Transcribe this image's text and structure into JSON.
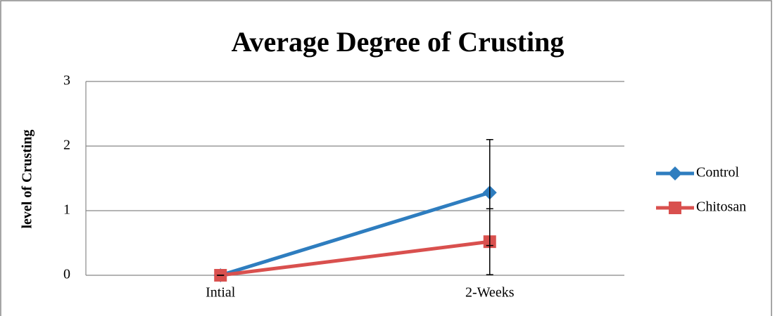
{
  "chart_data": {
    "type": "line",
    "title": "Average Degree of Crusting",
    "ylabel": "level of Crusting",
    "categories": [
      "Intial",
      "2-Weeks"
    ],
    "series": [
      {
        "name": "Control",
        "color": "#2e7dbf",
        "marker": "diamond",
        "values": [
          0,
          1.28
        ],
        "errors": [
          0,
          0.82
        ]
      },
      {
        "name": "Chitosan",
        "color": "#d9504e",
        "marker": "square",
        "values": [
          0,
          0.52
        ],
        "errors": [
          0,
          0.51
        ]
      }
    ],
    "ylim": [
      0,
      3
    ],
    "yticks": [
      0,
      1,
      2,
      3
    ],
    "grid": true,
    "legend": "right"
  }
}
